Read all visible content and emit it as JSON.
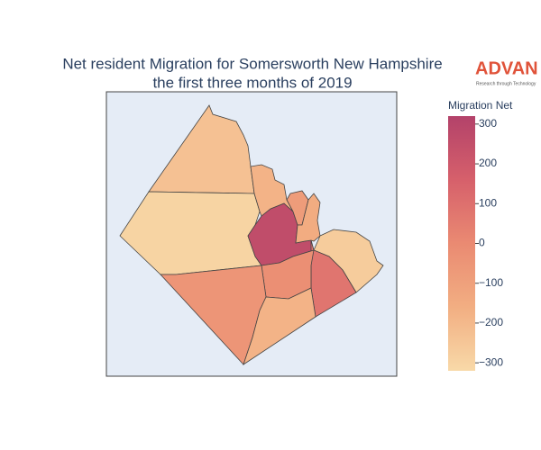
{
  "chart_data": {
    "type": "choropleth",
    "title": [
      "Net resident Migration for Somersworth New Hampshire",
      "the first three months of 2019"
    ],
    "logo": {
      "name": "ADVAN",
      "tagline": "Research through Technology"
    },
    "colorbar_title": "Migration Net",
    "clim": [
      -320,
      320
    ],
    "cticks": [
      {
        "value": -300,
        "label": "−300"
      },
      {
        "value": -200,
        "label": "−200"
      },
      {
        "value": -100,
        "label": "−100"
      },
      0,
      100,
      200,
      300
    ],
    "colorscale": [
      [
        0,
        "#f8d9a8"
      ],
      [
        0.25,
        "#f2ae82"
      ],
      [
        0.5,
        "#ea8a72"
      ],
      [
        0.75,
        "#d6606b"
      ],
      [
        1,
        "#b3426a"
      ]
    ],
    "values": [
      -230,
      -300,
      260,
      -180,
      -80,
      -150,
      -270,
      80,
      -20,
      -50,
      -180
    ]
  }
}
